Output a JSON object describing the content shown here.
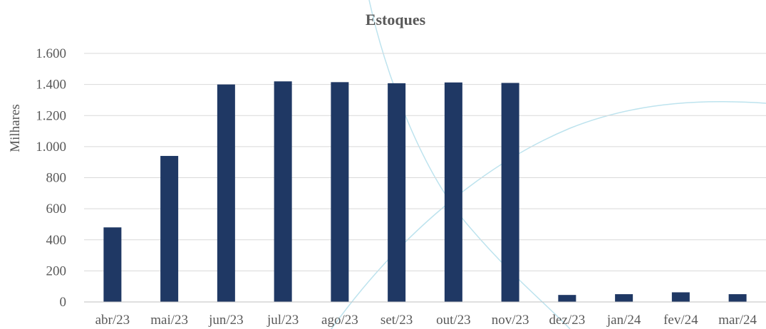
{
  "chart_data": {
    "type": "bar",
    "title": "Estoques",
    "xlabel": "",
    "ylabel": "Milhares",
    "categories": [
      "abr/23",
      "mai/23",
      "jun/23",
      "jul/23",
      "ago/23",
      "set/23",
      "out/23",
      "nov/23",
      "dez/23",
      "jan/24",
      "fev/24",
      "mar/24"
    ],
    "values": [
      480,
      940,
      1400,
      1420,
      1415,
      1408,
      1413,
      1410,
      45,
      50,
      62,
      50
    ],
    "ylim": [
      0,
      1600
    ],
    "yticks": [
      0,
      200,
      400,
      600,
      800,
      1000,
      1200,
      1400,
      1600
    ],
    "ytick_labels": [
      "0",
      "200",
      "400",
      "600",
      "800",
      "1.000",
      "1.200",
      "1.400",
      "1.600"
    ],
    "grid": true,
    "legend": "none",
    "colors": {
      "bar": "#1f3864",
      "text": "#595959",
      "grid": "#d9d9d9",
      "decoration": "#bde3ee"
    }
  }
}
